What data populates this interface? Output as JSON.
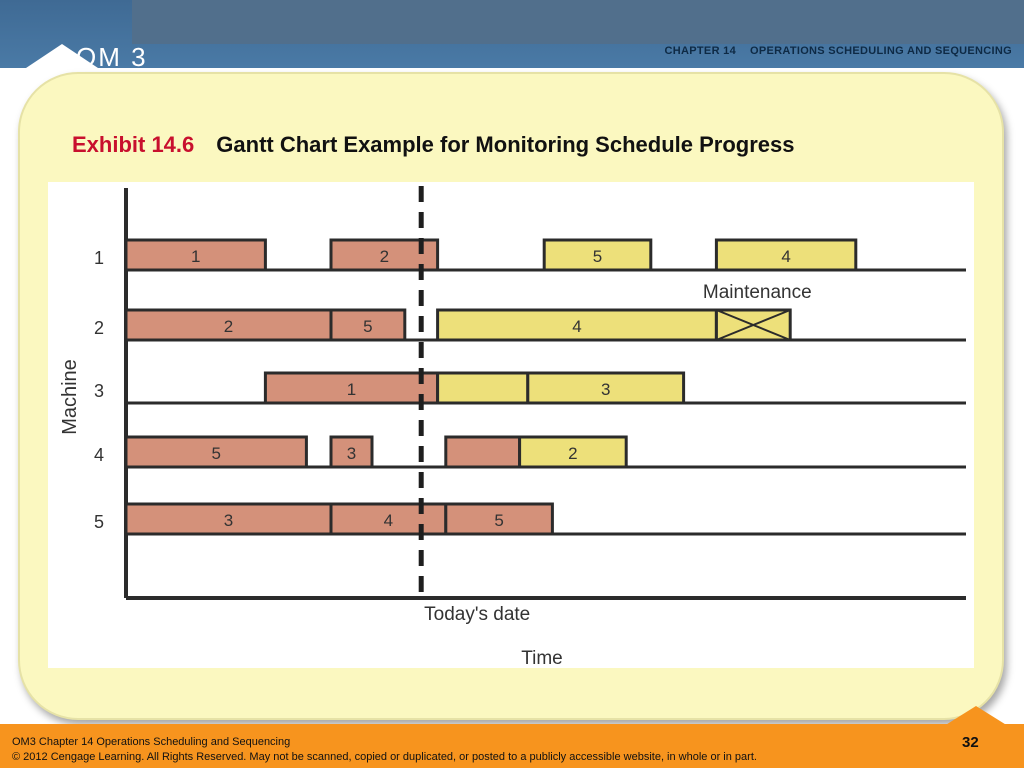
{
  "header": {
    "logo": "OM 3",
    "chapter_label": "CHAPTER 14",
    "chapter_title": "OPERATIONS SCHEDULING AND SEQUENCING"
  },
  "slide": {
    "exhibit": "Exhibit 14.6",
    "title": "Gantt Chart Example for Monitoring Schedule Progress"
  },
  "footer": {
    "line1": "OM3 Chapter 14  Operations Scheduling and Sequencing",
    "line2": "© 2012 Cengage Learning.  All Rights Reserved.  May not be scanned, copied or duplicated, or posted to a publicly accessible website, in whole or in part.",
    "page": "32"
  },
  "colors": {
    "completed": "#d4917a",
    "scheduled": "#ede07a",
    "outline": "#2b2b2b"
  },
  "chart_data": {
    "type": "gantt",
    "ylabel": "Machine",
    "xlabel": "Time",
    "today_label": "Today's date",
    "today": 36,
    "x_range": [
      0,
      100
    ],
    "machines": [
      "1",
      "2",
      "3",
      "4",
      "5"
    ],
    "annotation": "Maintenance",
    "tasks": [
      {
        "machine": "1",
        "job": "1",
        "start": 0,
        "end": 17,
        "done": 17
      },
      {
        "machine": "1",
        "job": "2",
        "start": 25,
        "end": 38,
        "done": 38
      },
      {
        "machine": "1",
        "job": "5",
        "start": 51,
        "end": 64,
        "done": 51
      },
      {
        "machine": "1",
        "job": "4",
        "start": 72,
        "end": 89,
        "done": 72
      },
      {
        "machine": "2",
        "job": "2",
        "start": 0,
        "end": 25,
        "done": 25
      },
      {
        "machine": "2",
        "job": "5",
        "start": 25,
        "end": 34,
        "done": 34
      },
      {
        "machine": "2",
        "job": "4",
        "start": 38,
        "end": 72,
        "done": 38
      },
      {
        "machine": "2",
        "job": "",
        "start": 72,
        "end": 81,
        "done": 72,
        "maintenance": true
      },
      {
        "machine": "3",
        "job": "1",
        "start": 17,
        "end": 38,
        "done": 38
      },
      {
        "machine": "3",
        "job": "",
        "start": 38,
        "end": 49,
        "done": 38
      },
      {
        "machine": "3",
        "job": "3",
        "start": 49,
        "end": 68,
        "done": 49
      },
      {
        "machine": "4",
        "job": "5",
        "start": 0,
        "end": 22,
        "done": 22
      },
      {
        "machine": "4",
        "job": "3",
        "start": 25,
        "end": 30,
        "done": 30
      },
      {
        "machine": "4",
        "job": "",
        "start": 39,
        "end": 48,
        "done": 48
      },
      {
        "machine": "4",
        "job": "2",
        "start": 48,
        "end": 61,
        "done": 48
      },
      {
        "machine": "5",
        "job": "3",
        "start": 0,
        "end": 25,
        "done": 25
      },
      {
        "machine": "5",
        "job": "4",
        "start": 25,
        "end": 39,
        "done": 39
      },
      {
        "machine": "5",
        "job": "5",
        "start": 39,
        "end": 52,
        "done": 52
      }
    ]
  }
}
